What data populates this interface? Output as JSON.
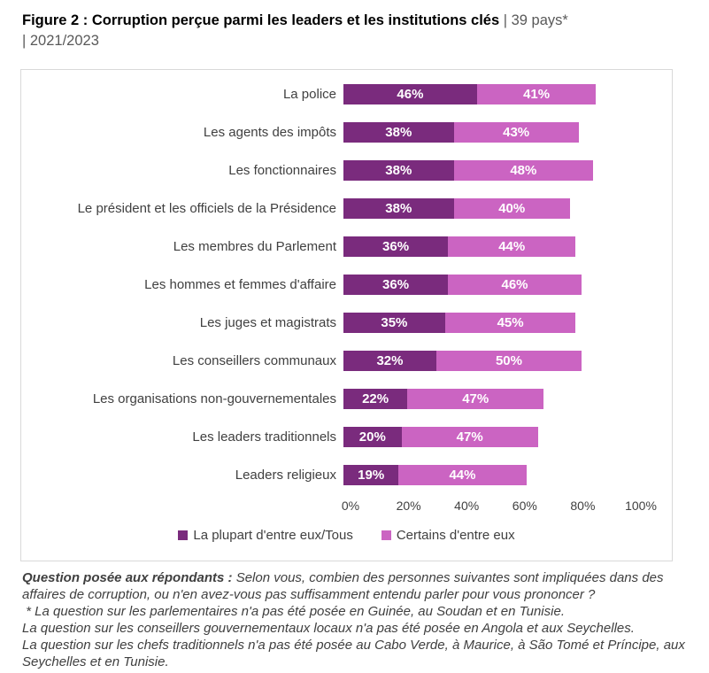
{
  "figure": {
    "title_bold": "Figure 2 : Corruption perçue parmi les leaders et les institutions clés",
    "title_suffix": " | 39 pays*",
    "title_line2": "| 2021/2023"
  },
  "chart_data": {
    "type": "bar",
    "orientation": "horizontal",
    "stacked": true,
    "title": "Figure 2 : Corruption perçue parmi les leaders et les institutions clés | 39 pays* | 2021/2023",
    "categories": [
      "La police",
      "Les agents des impôts",
      "Les fonctionnaires",
      "Le président et les officiels de la Présidence",
      "Les membres du Parlement",
      "Les hommes et femmes d'affaire",
      "Les juges et magistrats",
      "Les conseillers communaux",
      "Les organisations non-gouvernementales",
      "Les leaders traditionnels",
      "Leaders religieux"
    ],
    "series": [
      {
        "name": "La plupart d'entre eux/Tous",
        "color": "#7A2B7D",
        "values": [
          46,
          38,
          38,
          38,
          36,
          36,
          35,
          32,
          22,
          20,
          19
        ]
      },
      {
        "name": "Certains d'entre eux",
        "color": "#CB64C2",
        "values": [
          41,
          43,
          48,
          40,
          44,
          46,
          45,
          50,
          47,
          47,
          44
        ]
      }
    ],
    "value_suffix": "%",
    "x_ticks": [
      "0%",
      "20%",
      "40%",
      "60%",
      "80%",
      "100%"
    ],
    "xlim": [
      0,
      100
    ],
    "grid": false,
    "legend_position": "bottom"
  },
  "footnote": {
    "lead": "Question posée aux répondants :",
    "body": " Selon vous, combien des personnes suivantes sont impliquées dans des affaires de corruption, ou n'en avez-vous pas suffisamment entendu parler pour vous prononcer ?",
    "note_parlementaires": " * La question sur les parlementaires n'a pas été posée en Guinée, au Soudan et en Tunisie.",
    "note_conseillers": "La question sur les conseillers gouvernementaux locaux n'a pas été posée en Angola et aux Seychelles.",
    "note_chefs": "La question sur les chefs traditionnels n'a pas été posée au Cabo Verde, à Maurice, à São Tomé et Príncipe, aux Seychelles et en Tunisie."
  },
  "colors": {
    "series_most": "#7A2B7D",
    "series_some": "#CB64C2",
    "chart_border": "#D9D9D9",
    "text_primary": "#000000",
    "text_secondary": "#595959",
    "text_axis": "#404040"
  }
}
